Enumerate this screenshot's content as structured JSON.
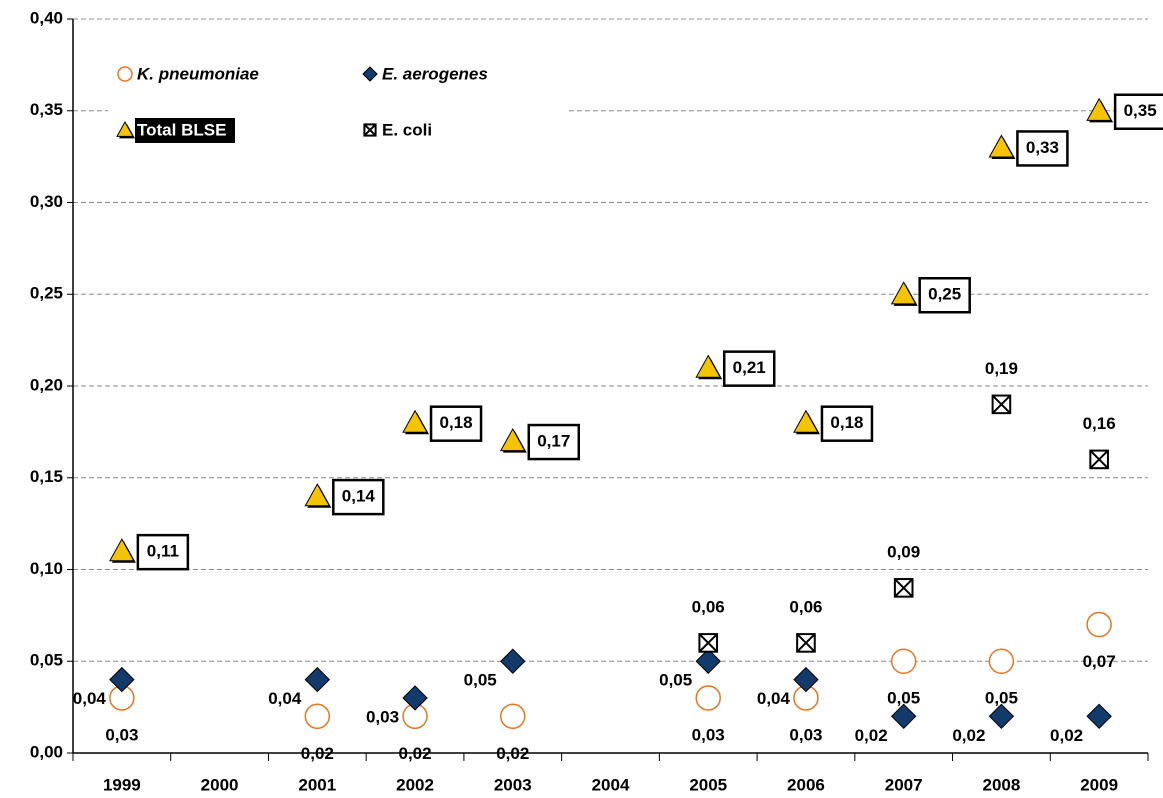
{
  "chart_data": {
    "type": "scatter",
    "categories": [
      "1999",
      "2000",
      "2001",
      "2002",
      "2003",
      "2004",
      "2005",
      "2006",
      "2007",
      "2008",
      "2009"
    ],
    "series": [
      {
        "name": "K. pneumoniae",
        "color": "#e87722",
        "marker": "circle",
        "label_position": "below",
        "values": [
          0.03,
          null,
          0.02,
          0.02,
          0.02,
          null,
          0.03,
          0.03,
          0.05,
          0.05,
          0.07
        ],
        "value_labels": [
          "0,03",
          null,
          "0,02",
          "0,02",
          "0,02",
          null,
          "0,03",
          "0,03",
          "0,05",
          "0,05",
          "0,07"
        ]
      },
      {
        "name": "E. aerogenes",
        "color": "#123a6b",
        "marker": "diamond",
        "label_position": "left",
        "values": [
          0.04,
          null,
          0.04,
          0.03,
          0.05,
          null,
          0.05,
          0.04,
          0.02,
          0.02,
          0.02
        ],
        "value_labels": [
          "0,04",
          null,
          "0,04",
          "0,03",
          "0,05",
          null,
          "0,05",
          "0,04",
          "0,02",
          "0,02",
          "0,02"
        ]
      },
      {
        "name": "Total BLSE",
        "color": "#f5c400",
        "marker": "triangle",
        "label_position": "right",
        "values": [
          0.11,
          null,
          0.14,
          0.18,
          0.17,
          null,
          0.21,
          0.18,
          0.25,
          0.33,
          0.35
        ],
        "value_labels": [
          "0,11",
          null,
          "0,14",
          "0,18",
          "0,17",
          null,
          "0,21",
          "0,18",
          "0,25",
          "0,33",
          "0,35"
        ]
      },
      {
        "name": "E. coli",
        "color": "#000000",
        "marker": "xsquare",
        "label_position": "above",
        "values": [
          null,
          null,
          null,
          null,
          null,
          null,
          0.06,
          0.06,
          0.09,
          0.19,
          0.16
        ],
        "value_labels": [
          null,
          null,
          null,
          null,
          null,
          null,
          "0,06",
          "0,06",
          "0,09",
          "0,19",
          "0,16"
        ]
      }
    ],
    "ylim": [
      0,
      0.4
    ],
    "yticks": [
      {
        "value": 0,
        "label": "0,00"
      },
      {
        "value": 0.05,
        "label": "0,05"
      },
      {
        "value": 0.1,
        "label": "0,10"
      },
      {
        "value": 0.15,
        "label": "0,15"
      },
      {
        "value": 0.2,
        "label": "0,20"
      },
      {
        "value": 0.25,
        "label": "0,25"
      },
      {
        "value": 0.3,
        "label": "0,30"
      },
      {
        "value": 0.35,
        "label": "0,35"
      },
      {
        "value": 0.4,
        "label": "0,40"
      }
    ],
    "grid": true
  }
}
